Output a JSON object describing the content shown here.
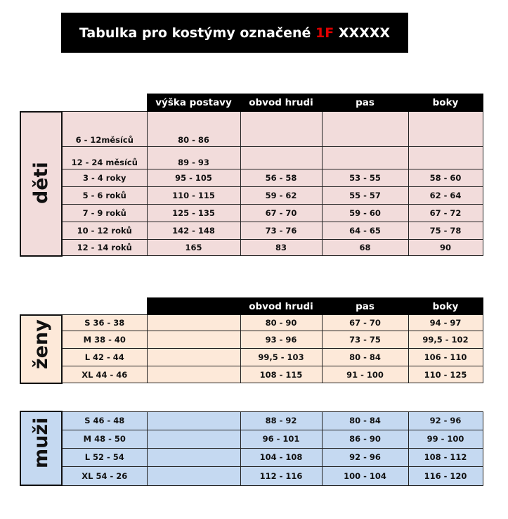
{
  "title": {
    "text": "Tabulka pro kostýmy označené ",
    "accent": "1F",
    "suffix": " XXXXX",
    "accent_color": "#e00000"
  },
  "tables": [
    {
      "group": "děti",
      "color": "#f2dcdb",
      "headers": [
        "",
        "",
        "výška postavy",
        "obvod hrudi",
        "pas",
        "boky"
      ],
      "rows": [
        [
          "6 - 12měsíců",
          "80 - 86",
          "",
          "",
          ""
        ],
        [
          "12 - 24 měsíců",
          "89 - 93",
          "",
          "",
          ""
        ],
        [
          "3 - 4 roky",
          "95 - 105",
          "56 - 58",
          "53 - 55",
          "58 - 60"
        ],
        [
          "5 - 6 roků",
          "110 - 115",
          "59 - 62",
          "55 - 57",
          "62 - 64"
        ],
        [
          "7 - 9 roků",
          "125 - 135",
          "67 - 70",
          "59 - 60",
          "67 - 72"
        ],
        [
          "10 - 12 roků",
          "142 - 148",
          "73 - 76",
          "64 - 65",
          "75 - 78"
        ],
        [
          "12 - 14 roků",
          "165",
          "83",
          "68",
          "90"
        ]
      ]
    },
    {
      "group": "ženy",
      "color": "#fde9d9",
      "headers": [
        "",
        "",
        "",
        "obvod hrudi",
        "pas",
        "boky"
      ],
      "rows": [
        [
          "S 36 - 38",
          "",
          "80 - 90",
          "67 - 70",
          "94 - 97"
        ],
        [
          "M 38 - 40",
          "",
          "93 - 96",
          "73 - 75",
          "99,5 - 102"
        ],
        [
          "L 42 - 44",
          "",
          "99,5 - 103",
          "80 - 84",
          "106 - 110"
        ],
        [
          "XL 44 - 46",
          "",
          "108 - 115",
          "91 - 100",
          "110 - 125"
        ]
      ]
    },
    {
      "group": "muži",
      "color": "#c5d9f1",
      "headers": null,
      "rows": [
        [
          "S 46 - 48",
          "",
          "88 - 92",
          "80 - 84",
          "92 - 96"
        ],
        [
          "M 48 - 50",
          "",
          "96 - 101",
          "86 - 90",
          "99 - 100"
        ],
        [
          "L 52 - 54",
          "",
          "104 - 108",
          "92 - 96",
          "108 - 112"
        ],
        [
          "XL 54 - 26",
          "",
          "112 - 116",
          "100 - 104",
          "116 - 120"
        ]
      ]
    }
  ]
}
